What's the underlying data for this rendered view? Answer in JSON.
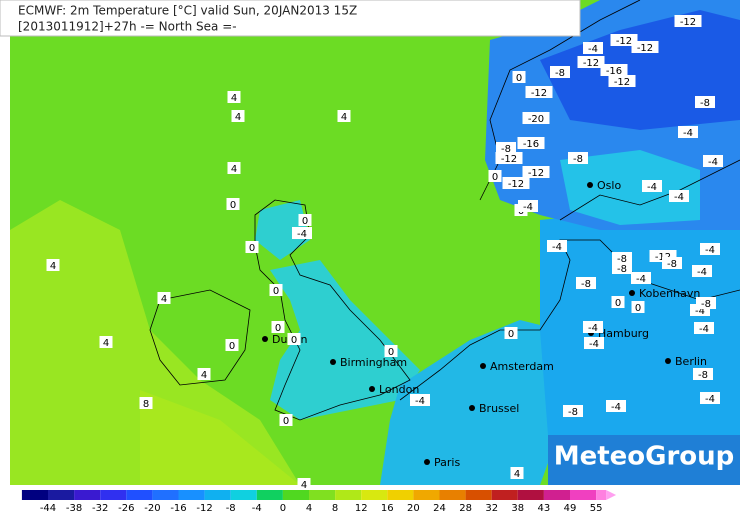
{
  "header": {
    "line1": "ECMWF: 2m Temperature [°C] valid Sun, 20JAN2013 15Z",
    "line2": "[2013011912]+27h -= North Sea =-"
  },
  "cities": [
    "Dublin",
    "Birmingham",
    "London",
    "Amsterdam",
    "Brussel",
    "Paris",
    "Oslo",
    "Kobenhavn",
    "Hamburg",
    "Berlin"
  ],
  "temperature_labels": [
    "4",
    "4",
    "4",
    "4",
    "0",
    "0",
    "-4",
    "0",
    "4",
    "4",
    "0",
    "0",
    "0",
    "0",
    "4",
    "4",
    "8",
    "0",
    "0",
    "4",
    "-4",
    "0",
    "4",
    "0",
    "-12",
    "-20",
    "-8",
    "-16",
    "-12",
    "0",
    "-12",
    "-12",
    "0",
    "-4",
    "-8",
    "-8",
    "-4",
    "-12",
    "-12",
    "-12",
    "-16",
    "-12",
    "-12",
    "-8",
    "-4",
    "-4",
    "-4",
    "-4",
    "-4",
    "-8",
    "-8",
    "-12",
    "-8",
    "-4",
    "-4",
    "-8",
    "-4",
    "0",
    "0",
    "-4",
    "-8",
    "-4",
    "-4",
    "-4",
    "-8",
    "-4",
    "-8",
    "-4"
  ],
  "legend": {
    "ticks": [
      "-44",
      "-38",
      "-32",
      "-26",
      "-20",
      "-16",
      "-12",
      "-8",
      "-4",
      "0",
      "4",
      "8",
      "12",
      "16",
      "20",
      "24",
      "28",
      "32",
      "38",
      "43",
      "49",
      "55"
    ]
  },
  "logo": "MeteoGroup"
}
